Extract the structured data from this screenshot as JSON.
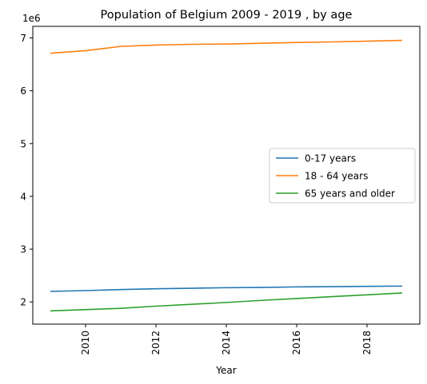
{
  "chart_data": {
    "type": "line",
    "title": "Population of Belgium 2009 - 2019 , by age",
    "xlabel": "Year",
    "ylabel": "",
    "y_offset_label": "1e6",
    "x": [
      2009,
      2010,
      2011,
      2012,
      2013,
      2014,
      2015,
      2016,
      2017,
      2018,
      2019
    ],
    "xlim": [
      2008.5,
      2019.5
    ],
    "ylim": [
      1.58,
      7.22
    ],
    "x_ticks": [
      2010,
      2012,
      2014,
      2016,
      2018
    ],
    "y_ticks": [
      2,
      3,
      4,
      5,
      6,
      7
    ],
    "grid": false,
    "legend_position": "center-right",
    "series": [
      {
        "name": "0-17 years",
        "color": "#1f77b4",
        "values": [
          2.2,
          2.215,
          2.235,
          2.25,
          2.26,
          2.27,
          2.275,
          2.285,
          2.29,
          2.295,
          2.3
        ]
      },
      {
        "name": "18 - 64 years",
        "color": "#ff7f0e",
        "values": [
          6.71,
          6.76,
          6.84,
          6.865,
          6.88,
          6.885,
          6.9,
          6.915,
          6.925,
          6.94,
          6.955
        ]
      },
      {
        "name": "65 years and older",
        "color": "#2ca02c",
        "values": [
          1.83,
          1.855,
          1.88,
          1.92,
          1.955,
          1.99,
          2.03,
          2.065,
          2.1,
          2.135,
          2.17
        ]
      }
    ]
  }
}
